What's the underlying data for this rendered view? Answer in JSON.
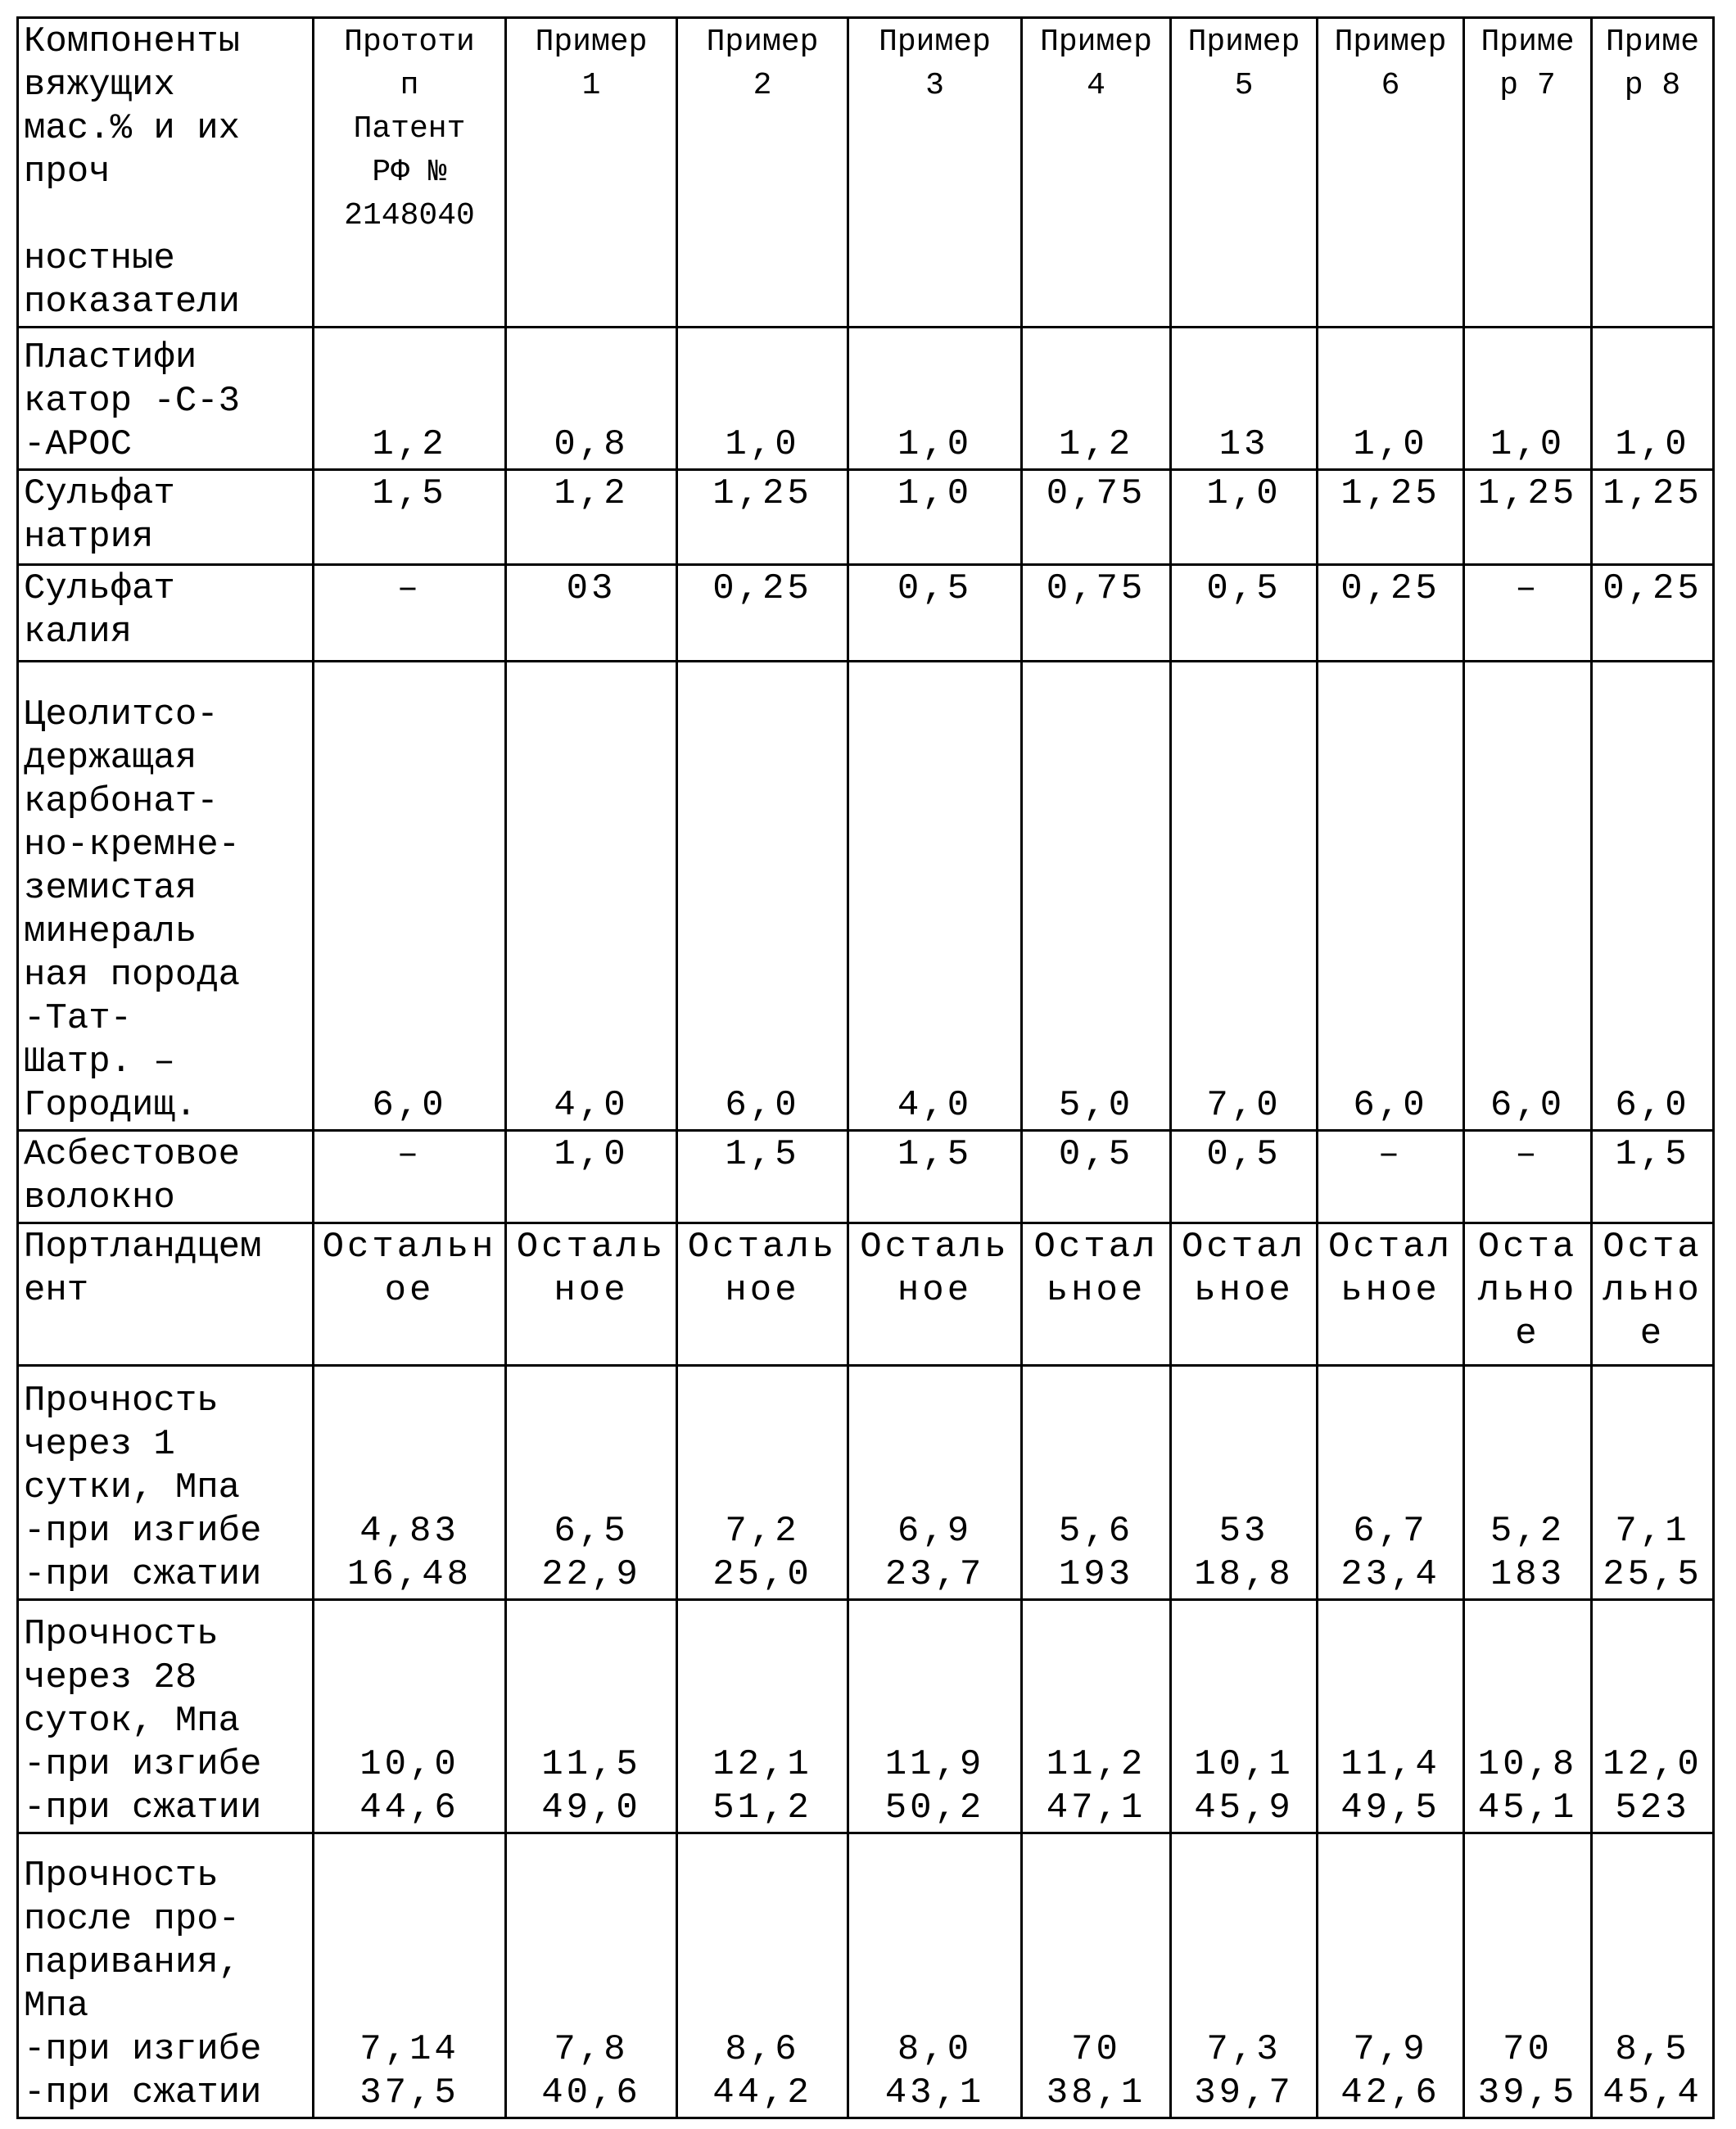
{
  "table": {
    "header": [
      "Компоненты\nвяжущих\nмас.% и их\nпроч\n\nностные\nпоказатели",
      "Прототи\nп\nПатент\nРФ №\n2148040",
      "Пример\n1",
      "Пример\n2",
      "Пример\n3",
      "Пример\n4",
      "Пример\n5",
      "Пример\n6",
      "Приме\nр 7",
      "Приме\nр 8"
    ],
    "rows": [
      [
        "Пластифи\nкатор -С-3\n-АРОС",
        "1,2",
        "0,8",
        "1,0",
        "1,0",
        "1,2",
        "13",
        "1,0",
        "1,0",
        "1,0"
      ],
      [
        "Сульфат\nнатрия",
        "1,5",
        "1,2",
        "1,25",
        "1,0",
        "0,75",
        "1,0",
        "1,25",
        "1,25",
        "1,25"
      ],
      [
        "Сульфат\nкалия",
        "–",
        "03",
        "0,25",
        "0,5",
        "0,75",
        "0,5",
        "0,25",
        "–",
        "0,25"
      ],
      [
        "Цеолитсо-\nдержащая\nкарбонат-\nно-кремне-\nземистая\nминераль\nная порода\n-Тат-\nШатр. –\nГородищ.",
        "6,0",
        "4,0",
        "6,0",
        "4,0",
        "5,0",
        "7,0",
        "6,0",
        "6,0",
        "6,0"
      ],
      [
        "Асбестовое\nволокно",
        "–",
        "1,0",
        "1,5",
        "1,5",
        "0,5",
        "0,5",
        "–",
        "–",
        "1,5"
      ],
      [
        "Портландцем\nент",
        "Остальн\nое",
        "Осталь\nное",
        "Осталь\nное",
        "Осталь\nное",
        "Остал\nьное",
        "Остал\nьное",
        "Остал\nьное",
        "Оста\nльно\nе",
        "Оста\nльно\nе"
      ],
      [
        "Прочность\nчерез 1\nсутки, Мпа\n-при изгибе\n-при сжатии",
        "4,83\n16,48",
        "6,5\n22,9",
        "7,2\n25,0",
        "6,9\n23,7",
        "5,6\n193",
        "53\n18,8",
        "6,7\n23,4",
        "5,2\n183",
        "7,1\n25,5"
      ],
      [
        "Прочность\nчерез 28\nсуток, Мпа\n-при изгибе\n-при сжатии",
        "10,0\n44,6",
        "11,5\n49,0",
        "12,1\n51,2",
        "11,9\n50,2",
        "11,2\n47,1",
        "10,1\n45,9",
        "11,4\n49,5",
        "10,8\n45,1",
        "12,0\n523"
      ],
      [
        "Прочность\nпосле про-\nпаривания,\nМпа\n-при изгибе\n-при сжатии",
        "7,14\n37,5",
        "7,8\n40,6",
        "8,6\n44,2",
        "8,0\n43,1",
        "70\n38,1",
        "7,3\n39,7",
        "7,9\n42,6",
        "70\n39,5",
        "8,5\n45,4"
      ]
    ]
  }
}
